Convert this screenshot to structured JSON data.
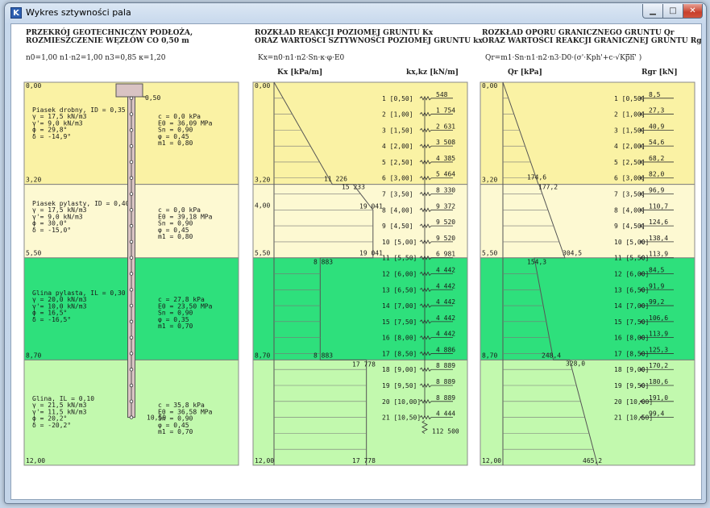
{
  "window": {
    "title": "Wykres sztywności pala",
    "app_icon": "app-logo-icon",
    "min_icon": "minimize-icon",
    "max_icon": "maximize-icon",
    "close_icon": "close-icon"
  },
  "colors": {
    "layer1": "#faf2a4",
    "layer2": "#fdf9d2",
    "layer3": "#2ee07c",
    "layer4": "#c2f9ae",
    "pile": "#d9c3c3",
    "band": "#7a7a7a"
  },
  "panel1": {
    "header1": "PRZEKRÓJ GEOTECHNICZNY PODŁOŻA,",
    "header2": "ROZMIESZCZENIE WĘZŁÓW CO 0,50 m",
    "params": "n0=1,00    n1·n2=1,00   n3=0,85   κ=1,20",
    "pile_top": "0,50",
    "pile_bottom": "10,50"
  },
  "panel2": {
    "header1": "ROZKŁAD REAKCJI POZIOMEJ GRUNTU Kx",
    "header2": "ORAZ WARTOŚCI SZTYWNOŚCI POZIOMEJ GRUNTU kx",
    "formula": "Kx=n0·n1·n2·Sn·κ·φ·E0",
    "col_left": "Kx [kPa/m]",
    "col_right": "kx,kz [kN/m]",
    "annotations": [
      {
        "text": "11 226"
      },
      {
        "text": "15 233"
      },
      {
        "text": "19 041"
      },
      {
        "text": "19 041"
      },
      {
        "text": "8 883"
      },
      {
        "text": "8 883"
      },
      {
        "text": "17 778"
      },
      {
        "text": "17 778"
      }
    ],
    "node_springs": [
      "548",
      "1 754",
      "2 631",
      "3 508",
      "4 385",
      "5 464",
      "8 330",
      "9 372",
      "9 520",
      "9 520",
      "6 981",
      "4 442",
      "4 442",
      "4 442",
      "4 442",
      "4 442",
      "4 886",
      "8 889",
      "8 889",
      "8 889",
      "4 444"
    ],
    "base_spring": "112 500"
  },
  "panel3": {
    "header1": "ROZKŁAD OPORU GRANICZNEGO GRUNTU Qr",
    "header2": "ORAZ WARTOŚCI REAKCJI GRANICZNEJ GRUNTU Rgr",
    "formula_prefix": "Qr=m1·Sn·n1·n2·n3·D0·(σ'·Kph'+c·",
    "formula_root": "Kph'",
    "formula_suffix": ")",
    "col_left": "Qr [kPa]",
    "col_right": "Rgr [kN]",
    "annotations": [
      {
        "text": "174,6"
      },
      {
        "text": "177,2"
      },
      {
        "text": "304,5"
      },
      {
        "text": "154,3"
      },
      {
        "text": "248,4"
      },
      {
        "text": "328,0"
      },
      {
        "text": "465,2"
      }
    ],
    "node_forces": [
      "8,5",
      "27,3",
      "40,9",
      "54,6",
      "68,2",
      "82,0",
      "96,9",
      "110,7",
      "124,6",
      "138,4",
      "113,9",
      "84,5",
      "91,9",
      "99,2",
      "106,6",
      "113,9",
      "125,3",
      "170,2",
      "180,6",
      "191,0",
      "99,4"
    ]
  },
  "depths": [
    "0,00",
    "3,20",
    "5,50",
    "8,70",
    "12,00"
  ],
  "nodes": [
    "1 [0,50]",
    "2 [1,00]",
    "3 [1,50]",
    "4 [2,00]",
    "5 [2,50]",
    "6 [3,00]",
    "7 [3,50]",
    "8 [4,00]",
    "9 [4,50]",
    "10 [5,00]",
    "11 [5,50]",
    "12 [6,00]",
    "13 [6,50]",
    "14 [7,00]",
    "15 [7,50]",
    "16 [8,00]",
    "17 [8,50]",
    "18 [9,00]",
    "19 [9,50]",
    "20 [10,00]",
    "21 [10,50]"
  ],
  "extra_depth": "4,00",
  "layers": [
    {
      "name": "Piasek drobny, ID = 0,35",
      "gamma": "γ = 17,5 kN/m3",
      "gamma_p": "γ'= 9,0 kN/m3",
      "phi": "ϕ = 29,8°",
      "delta": "δ = -14,9°",
      "c": "c = 0,0 kPa",
      "E0": "E0 = 36,09 MPa",
      "Sn": "Sn = 0,90",
      "fi": "φ = 0,45",
      "m1": "m1 = 0,80"
    },
    {
      "name": "Piasek pylasty, ID = 0,40",
      "gamma": "γ = 17,5 kN/m3",
      "gamma_p": "γ'= 9,0 kN/m3",
      "phi": "ϕ = 30,0°",
      "delta": "δ = -15,0°",
      "c": "c = 0,0 kPa",
      "E0": "E0 = 39,18 MPa",
      "Sn": "Sn = 0,90",
      "fi": "φ = 0,45",
      "m1": "m1 = 0,80"
    },
    {
      "name": "Glina pylasta, IL = 0,30",
      "gamma": "γ = 20,0 kN/m3",
      "gamma_p": "γ'= 10,0 kN/m3",
      "phi": "ϕ = 16,5°",
      "delta": "δ = -16,5°",
      "c": "c = 27,8 kPa",
      "E0": "E0 = 23,50 MPa",
      "Sn": "Sn = 0,90",
      "fi": "φ = 0,35",
      "m1": "m1 = 0,70"
    },
    {
      "name": "Glina, IL = 0,10",
      "gamma": "γ = 21,5 kN/m3",
      "gamma_p": "γ'= 11,5 kN/m3",
      "phi": "ϕ = 20,2°",
      "delta": "δ = -20,2°",
      "c": "c = 35,8 kPa",
      "E0": "E0 = 36,58 MPa",
      "Sn": "Sn = 0,90",
      "fi": "φ = 0,45",
      "m1": "m1 = 0,70"
    }
  ]
}
